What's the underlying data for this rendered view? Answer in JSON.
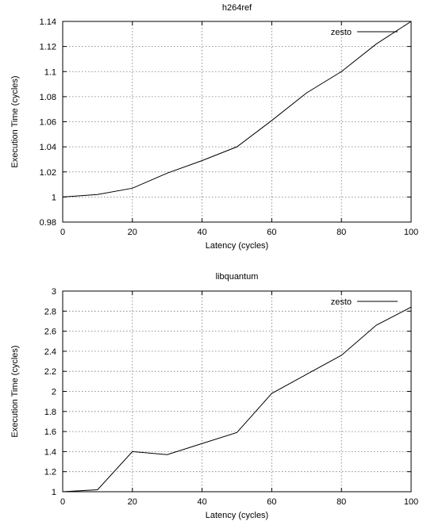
{
  "chart_data": [
    {
      "type": "line",
      "title": "h264ref",
      "xlabel": "Latency (cycles)",
      "ylabel": "Execution Time (cycles)",
      "xlim": [
        0,
        100
      ],
      "ylim": [
        0.98,
        1.14
      ],
      "xticks": [
        0,
        20,
        40,
        60,
        80,
        100
      ],
      "yticks": [
        0.98,
        1,
        1.02,
        1.04,
        1.06,
        1.08,
        1.1,
        1.12,
        1.14
      ],
      "ytick_labels": [
        "0.98",
        "1",
        "1.02",
        "1.04",
        "1.06",
        "1.08",
        "1.1",
        "1.12",
        "1.14"
      ],
      "grid": true,
      "legend_position": "top-right",
      "series": [
        {
          "name": "zesto",
          "color": "#000000",
          "x": [
            0,
            10,
            20,
            30,
            40,
            50,
            60,
            70,
            80,
            90,
            100
          ],
          "y": [
            1.0,
            1.002,
            1.007,
            1.019,
            1.029,
            1.04,
            1.061,
            1.083,
            1.1,
            1.122,
            1.14
          ]
        }
      ]
    },
    {
      "type": "line",
      "title": "libquantum",
      "xlabel": "Latency (cycles)",
      "ylabel": "Execution Time (cycles)",
      "xlim": [
        0,
        100
      ],
      "ylim": [
        1,
        3
      ],
      "xticks": [
        0,
        20,
        40,
        60,
        80,
        100
      ],
      "yticks": [
        1,
        1.2,
        1.4,
        1.6,
        1.8,
        2,
        2.2,
        2.4,
        2.6,
        2.8,
        3
      ],
      "ytick_labels": [
        "1",
        "1.2",
        "1.4",
        "1.6",
        "1.8",
        "2",
        "2.2",
        "2.4",
        "2.6",
        "2.8",
        "3"
      ],
      "grid": true,
      "legend_position": "top-right",
      "series": [
        {
          "name": "zesto",
          "color": "#000000",
          "x": [
            0,
            10,
            20,
            30,
            40,
            50,
            60,
            70,
            80,
            90,
            100
          ],
          "y": [
            1.0,
            1.02,
            1.4,
            1.37,
            1.48,
            1.59,
            1.98,
            2.17,
            2.36,
            2.66,
            2.84
          ]
        }
      ]
    }
  ]
}
